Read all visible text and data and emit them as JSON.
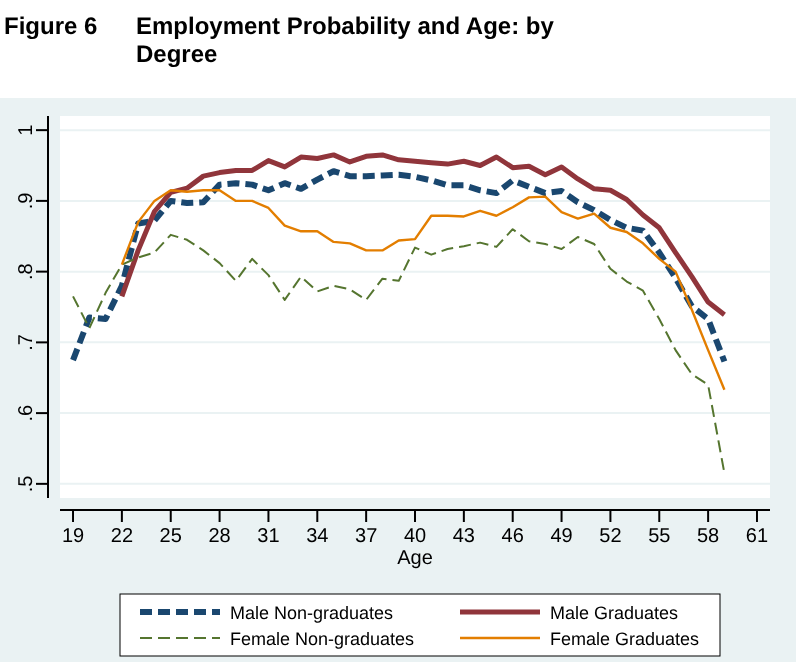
{
  "chart_data": {
    "type": "line",
    "title": "Employment Probability and Age: by Degree",
    "annotations": [
      "Figure 6"
    ],
    "xlabel": "Age",
    "x": [
      19,
      20,
      21,
      22,
      23,
      24,
      25,
      26,
      27,
      28,
      29,
      30,
      31,
      32,
      33,
      34,
      35,
      36,
      37,
      38,
      39,
      40,
      41,
      42,
      43,
      44,
      45,
      46,
      47,
      48,
      49,
      50,
      51,
      52,
      53,
      54,
      55,
      56,
      57,
      58,
      59
    ],
    "xlim": [
      18.2,
      61.8
    ],
    "xticks": [
      19,
      22,
      25,
      28,
      31,
      34,
      37,
      40,
      43,
      46,
      49,
      52,
      55,
      58,
      61
    ],
    "ylim": [
      0.48,
      1.02
    ],
    "yticks": [
      {
        "value": 0.5,
        "label": ".5"
      },
      {
        "value": 0.6,
        "label": ".6"
      },
      {
        "value": 0.7,
        "label": ".7"
      },
      {
        "value": 0.8,
        "label": ".8"
      },
      {
        "value": 0.9,
        "label": ".9"
      },
      {
        "value": 1,
        "label": "1"
      }
    ],
    "grid": "y",
    "legend": "bottom",
    "series": [
      {
        "name": "Male Non-graduates",
        "color": "#1a476f",
        "line_style": "dashed",
        "values": [
          0.675,
          0.735,
          0.733,
          0.78,
          0.868,
          0.872,
          0.9,
          0.897,
          0.898,
          0.923,
          0.925,
          0.923,
          0.915,
          0.925,
          0.917,
          0.93,
          0.942,
          0.935,
          0.935,
          0.936,
          0.937,
          0.934,
          0.929,
          0.922,
          0.922,
          0.915,
          0.911,
          0.929,
          0.92,
          0.911,
          0.914,
          0.898,
          0.887,
          0.873,
          0.862,
          0.858,
          0.827,
          0.791,
          0.751,
          0.733,
          0.673
        ]
      },
      {
        "name": "Male Graduates",
        "color": "#90353b",
        "line_style": "solid",
        "values": [
          null,
          null,
          null,
          0.765,
          0.83,
          0.885,
          0.912,
          0.918,
          0.935,
          0.94,
          0.943,
          0.943,
          0.957,
          0.948,
          0.962,
          0.96,
          0.965,
          0.955,
          0.963,
          0.965,
          0.958,
          0.956,
          0.954,
          0.952,
          0.956,
          0.95,
          0.962,
          0.947,
          0.949,
          0.937,
          0.948,
          0.931,
          0.917,
          0.915,
          0.902,
          0.88,
          0.862,
          0.827,
          0.793,
          0.757,
          0.739
        ]
      },
      {
        "name": "Female Non-graduates",
        "color": "#55752f",
        "line_style": "dashed",
        "values": [
          0.765,
          0.72,
          0.77,
          0.81,
          0.82,
          0.827,
          0.852,
          0.845,
          0.83,
          0.812,
          0.787,
          0.818,
          0.795,
          0.76,
          0.793,
          0.772,
          0.78,
          0.775,
          0.76,
          0.79,
          0.787,
          0.834,
          0.824,
          0.832,
          0.836,
          0.841,
          0.835,
          0.86,
          0.843,
          0.839,
          0.832,
          0.849,
          0.839,
          0.804,
          0.786,
          0.773,
          0.733,
          0.689,
          0.655,
          0.64,
          0.515
        ]
      },
      {
        "name": "Female Graduates",
        "color": "#e37e00",
        "line_style": "solid",
        "values": [
          null,
          null,
          null,
          0.81,
          0.87,
          0.9,
          0.915,
          0.913,
          0.915,
          0.915,
          0.9,
          0.9,
          0.89,
          0.865,
          0.857,
          0.857,
          0.842,
          0.84,
          0.83,
          0.83,
          0.844,
          0.846,
          0.879,
          0.879,
          0.878,
          0.886,
          0.879,
          0.891,
          0.905,
          0.906,
          0.884,
          0.875,
          0.882,
          0.862,
          0.856,
          0.84,
          0.818,
          0.8,
          0.746,
          0.689,
          0.633
        ]
      }
    ]
  }
}
